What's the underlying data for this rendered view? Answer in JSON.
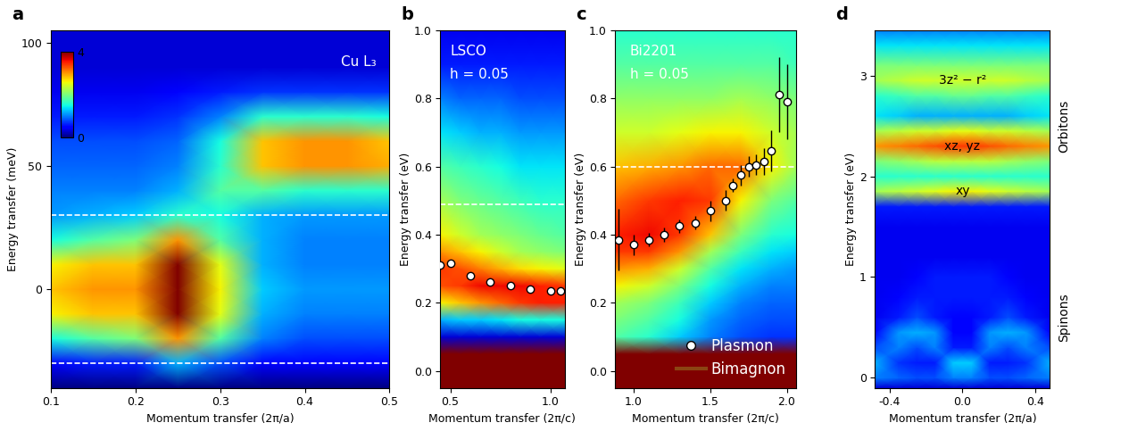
{
  "chart_data": [
    {
      "type": "heatmap",
      "panel": "a",
      "xlabel": "Momentum transfer (2π/a)",
      "ylabel": "Energy transfer (meV)",
      "xlim": [
        0.1,
        0.5
      ],
      "ylim": [
        -40,
        105
      ],
      "xticks": [
        0.1,
        0.2,
        0.3,
        0.4,
        0.5
      ],
      "yticks": [
        0,
        50,
        100
      ],
      "texts": [
        "Cu L₃"
      ],
      "reference_lines": [
        30,
        -30
      ],
      "colorbar": {
        "range": [
          0,
          4
        ],
        "ticks": [
          0,
          4
        ]
      },
      "x": [
        0.1,
        0.15,
        0.2,
        0.25,
        0.3,
        0.35,
        0.4,
        0.45,
        0.5
      ],
      "y": [
        -40,
        -30,
        -20,
        -10,
        0,
        10,
        20,
        30,
        40,
        50,
        60,
        70,
        80,
        90,
        105
      ],
      "cells": [
        [
          0,
          0,
          0,
          0,
          0,
          0,
          0,
          0,
          0
        ],
        [
          0.5,
          0.6,
          0.6,
          1.2,
          0.8,
          0.5,
          0.5,
          0.5,
          0.5
        ],
        [
          1.5,
          1.8,
          2,
          3,
          1.8,
          1,
          0.8,
          0.8,
          0.8
        ],
        [
          2.6,
          2.8,
          2.8,
          4,
          2.5,
          1.2,
          1,
          1,
          1
        ],
        [
          2.8,
          3,
          3,
          4,
          2.6,
          1.3,
          1.1,
          1.1,
          1.1
        ],
        [
          2.6,
          2.8,
          2.8,
          4,
          2.5,
          1.2,
          1,
          1,
          1
        ],
        [
          1.5,
          1.8,
          2,
          3,
          1.8,
          1.2,
          1,
          1,
          1
        ],
        [
          1.1,
          1.2,
          1.3,
          1.6,
          1.5,
          1.2,
          1.1,
          1.1,
          1.1
        ],
        [
          1,
          1,
          1,
          1.2,
          1.8,
          1.8,
          1.6,
          1.6,
          1.6
        ],
        [
          0.9,
          0.9,
          0.9,
          1,
          1.6,
          2.8,
          3,
          3,
          2.9
        ],
        [
          0.8,
          0.8,
          0.8,
          0.9,
          1.5,
          2.8,
          3,
          3,
          2.8
        ],
        [
          0.6,
          0.6,
          0.6,
          0.7,
          1,
          1.6,
          1.6,
          1.6,
          1.5
        ],
        [
          0.4,
          0.4,
          0.4,
          0.5,
          0.6,
          0.7,
          0.7,
          0.7,
          0.7
        ],
        [
          0.3,
          0.3,
          0.3,
          0.3,
          0.3,
          0.3,
          0.3,
          0.3,
          0.3
        ],
        [
          0.3,
          0.3,
          0.3,
          0.3,
          0.3,
          0.3,
          0.3,
          0.3,
          0.3
        ]
      ]
    },
    {
      "type": "heatmap",
      "panel": "b",
      "xlabel": "Momentum transfer (2π/c)",
      "ylabel": "Energy transfer (eV)",
      "xlim": [
        0.45,
        1.07
      ],
      "ylim": [
        -0.05,
        1.0
      ],
      "xticks": [
        0.5,
        1.0
      ],
      "yticks": [
        0.0,
        0.2,
        0.4,
        0.6,
        0.8,
        1.0
      ],
      "texts": [
        "LSCO",
        "h = 0.05"
      ],
      "reference_lines": [
        0.49
      ],
      "color_range": [
        0,
        4
      ],
      "series": [
        {
          "color": "#ffffff",
          "marker": "o",
          "x": [
            0.45,
            0.5,
            0.6,
            0.7,
            0.8,
            0.9,
            1.0,
            1.05
          ],
          "values": [
            0.31,
            0.315,
            0.28,
            0.26,
            0.25,
            0.24,
            0.235,
            0.235
          ]
        }
      ],
      "x": [
        0.45,
        0.55,
        0.65,
        0.75,
        0.85,
        0.95,
        1.07
      ],
      "y": [
        -0.05,
        0.0,
        0.05,
        0.1,
        0.15,
        0.2,
        0.25,
        0.3,
        0.35,
        0.4,
        0.5,
        0.6,
        0.7,
        0.8,
        0.9,
        1.0
      ],
      "cells": [
        [
          4,
          4,
          4,
          4,
          4,
          4,
          4
        ],
        [
          4,
          4,
          4,
          4,
          4,
          4,
          4
        ],
        [
          4,
          4,
          4,
          4,
          4,
          4,
          4
        ],
        [
          0.3,
          0.3,
          0.3,
          0.3,
          0.3,
          0.3,
          0.3
        ],
        [
          1.2,
          1.3,
          1.3,
          1.4,
          1.5,
          1.5,
          1.5
        ],
        [
          2.6,
          2.8,
          3,
          3.2,
          3.4,
          3.5,
          3.5
        ],
        [
          3.3,
          3.4,
          3.6,
          3.6,
          3.6,
          3.5,
          3.4
        ],
        [
          3.4,
          3.3,
          3.1,
          2.9,
          2.7,
          2.6,
          2.5
        ],
        [
          3,
          2.8,
          2.6,
          2.4,
          2.2,
          2.1,
          2
        ],
        [
          2.6,
          2.4,
          2.2,
          2.1,
          2,
          1.9,
          1.8
        ],
        [
          2.2,
          2,
          1.9,
          1.8,
          1.7,
          1.6,
          1.6
        ],
        [
          1.8,
          1.7,
          1.6,
          1.5,
          1.4,
          1.4,
          1.4
        ],
        [
          1.4,
          1.3,
          1.2,
          1.2,
          1.1,
          1.1,
          1.1
        ],
        [
          1.0,
          0.9,
          0.9,
          0.9,
          0.8,
          0.8,
          0.8
        ],
        [
          0.6,
          0.6,
          0.6,
          0.6,
          0.6,
          0.6,
          0.6
        ],
        [
          0.4,
          0.4,
          0.4,
          0.4,
          0.4,
          0.4,
          0.4
        ]
      ]
    },
    {
      "type": "heatmap",
      "panel": "c",
      "xlabel": "Momentum transfer (2π/c)",
      "ylabel": "Energy transfer (eV)",
      "xlim": [
        0.88,
        2.06
      ],
      "ylim": [
        -0.05,
        1.0
      ],
      "xticks": [
        1.0,
        1.5,
        2.0
      ],
      "yticks": [
        0.0,
        0.2,
        0.4,
        0.6,
        0.8,
        1.0
      ],
      "texts": [
        "Bi2201",
        "h = 0.05"
      ],
      "reference_lines": [
        0.6
      ],
      "color_range": [
        0,
        4
      ],
      "legend": "lower right",
      "series": [
        {
          "name": "Plasmon",
          "color": "#ffffff",
          "marker": "o",
          "x": [
            0.9,
            1.0,
            1.1,
            1.2,
            1.3,
            1.4,
            1.5,
            1.6,
            1.65,
            1.7,
            1.75,
            1.8,
            1.85,
            1.9,
            1.95,
            2.0
          ],
          "values": [
            0.385,
            0.37,
            0.385,
            0.4,
            0.425,
            0.435,
            0.47,
            0.5,
            0.545,
            0.575,
            0.6,
            0.605,
            0.615,
            0.645,
            0.81,
            0.79
          ],
          "errors": [
            0.09,
            0.03,
            0.02,
            0.02,
            0.02,
            0.02,
            0.03,
            0.03,
            0.02,
            0.03,
            0.03,
            0.03,
            0.04,
            0.06,
            0.11,
            0.11
          ]
        },
        {
          "name": "Bimagnon",
          "color": "#8b4513",
          "line_style": "solid",
          "x": [],
          "values": []
        }
      ],
      "x": [
        0.88,
        1.1,
        1.3,
        1.5,
        1.7,
        1.9,
        2.06
      ],
      "y": [
        -0.05,
        0.0,
        0.05,
        0.1,
        0.15,
        0.2,
        0.25,
        0.3,
        0.35,
        0.4,
        0.5,
        0.6,
        0.7,
        0.8,
        0.9,
        1.0
      ],
      "cells": [
        [
          4,
          4,
          4,
          4,
          4,
          4,
          4
        ],
        [
          4,
          4,
          4,
          4,
          4,
          4,
          4
        ],
        [
          4,
          4,
          4,
          4,
          4,
          4,
          4
        ],
        [
          1.8,
          1.6,
          1.3,
          1.0,
          0.8,
          0.7,
          0.7
        ],
        [
          2,
          1.8,
          1.5,
          1.1,
          0.9,
          0.8,
          0.8
        ],
        [
          2.2,
          2,
          1.7,
          1.3,
          1.0,
          0.9,
          0.9
        ],
        [
          2.6,
          2.4,
          2.0,
          1.5,
          1.2,
          1.0,
          1.0
        ],
        [
          3,
          2.9,
          2.4,
          1.8,
          1.4,
          1.2,
          1.1
        ],
        [
          3.4,
          3.4,
          3,
          2.2,
          1.7,
          1.4,
          1.3
        ],
        [
          3.5,
          3.6,
          3.4,
          2.8,
          2.0,
          1.6,
          1.5
        ],
        [
          3.2,
          3.4,
          3.5,
          3.4,
          2.6,
          2.0,
          1.8
        ],
        [
          2.8,
          2.9,
          3.0,
          3.2,
          3.2,
          2.6,
          2.2
        ],
        [
          2.4,
          2.4,
          2.5,
          2.6,
          2.6,
          2.4,
          2.2
        ],
        [
          2.1,
          2.1,
          2.1,
          2.1,
          2.2,
          2.1,
          2.0
        ],
        [
          1.8,
          1.8,
          1.8,
          1.8,
          1.8,
          1.8,
          1.7
        ],
        [
          1.6,
          1.6,
          1.6,
          1.6,
          1.6,
          1.6,
          1.6
        ]
      ]
    },
    {
      "type": "heatmap",
      "panel": "d",
      "xlabel": "Momentum transfer (2π/a)",
      "ylabel": "Energy transfer (eV)",
      "xlim": [
        -0.48,
        0.48
      ],
      "ylim": [
        -0.1,
        3.45
      ],
      "xticks": [
        -0.4,
        0.0,
        0.4
      ],
      "yticks": [
        0,
        1,
        2,
        3
      ],
      "color_range": [
        0,
        4
      ],
      "band_labels": [
        {
          "label": "3z² − r²",
          "value": 2.95
        },
        {
          "label": "xz, yz",
          "value": 2.3
        },
        {
          "label": "xy",
          "value": 1.85
        }
      ],
      "side_labels": [
        {
          "label": "Orbitons",
          "value": 2.5
        },
        {
          "label": "Spinons",
          "value": 0.6
        }
      ],
      "x": [
        -0.48,
        -0.35,
        -0.25,
        -0.15,
        -0.05,
        0.05,
        0.15,
        0.25,
        0.35,
        0.48
      ],
      "y": [
        -0.1,
        0.0,
        0.15,
        0.3,
        0.45,
        0.6,
        0.8,
        1.0,
        1.2,
        1.5,
        1.7,
        1.85,
        2.0,
        2.15,
        2.3,
        2.45,
        2.6,
        2.8,
        2.95,
        3.1,
        3.3,
        3.45
      ],
      "cells": [
        [
          0.3,
          0.3,
          0.3,
          0.3,
          0.3,
          0.3,
          0.3,
          0.3,
          0.3,
          0.3
        ],
        [
          1.0,
          0.9,
          0.8,
          0.8,
          1.0,
          1.0,
          0.8,
          0.8,
          0.9,
          1.0
        ],
        [
          1.2,
          0.7,
          0.6,
          0.6,
          1.3,
          1.3,
          0.6,
          0.6,
          0.7,
          1.2
        ],
        [
          0.8,
          1.0,
          0.8,
          1.0,
          0.6,
          0.6,
          1.0,
          0.8,
          1.0,
          0.8
        ],
        [
          0.5,
          1.1,
          1.2,
          1.1,
          0.5,
          0.5,
          1.1,
          1.2,
          1.1,
          0.5
        ],
        [
          0.4,
          0.6,
          0.8,
          0.6,
          0.5,
          0.5,
          0.6,
          0.8,
          0.6,
          0.4
        ],
        [
          0.4,
          0.5,
          0.6,
          0.6,
          0.6,
          0.6,
          0.6,
          0.6,
          0.5,
          0.4
        ],
        [
          0.4,
          0.4,
          0.5,
          0.6,
          0.6,
          0.6,
          0.6,
          0.5,
          0.4,
          0.4
        ],
        [
          0.4,
          0.4,
          0.4,
          0.4,
          0.4,
          0.4,
          0.4,
          0.4,
          0.4,
          0.4
        ],
        [
          0.4,
          0.4,
          0.4,
          0.4,
          0.4,
          0.4,
          0.4,
          0.4,
          0.4,
          0.4
        ],
        [
          0.6,
          0.6,
          0.6,
          0.6,
          0.6,
          0.6,
          0.6,
          0.6,
          0.6,
          0.6
        ],
        [
          2.2,
          2.3,
          2.4,
          2.5,
          2.6,
          2.6,
          2.5,
          2.4,
          2.3,
          2.2
        ],
        [
          1.6,
          1.6,
          1.6,
          1.6,
          1.6,
          1.6,
          1.6,
          1.6,
          1.6,
          1.6
        ],
        [
          2.0,
          2.1,
          2.2,
          2.3,
          2.3,
          2.3,
          2.3,
          2.2,
          2.1,
          2.0
        ],
        [
          3.0,
          3.1,
          3.2,
          3.3,
          3.4,
          3.4,
          3.3,
          3.2,
          3.1,
          3.0
        ],
        [
          2.2,
          2.3,
          2.4,
          2.4,
          2.5,
          2.5,
          2.4,
          2.4,
          2.3,
          2.2
        ],
        [
          1.4,
          1.3,
          1.2,
          1.2,
          1.2,
          1.2,
          1.2,
          1.2,
          1.3,
          1.4
        ],
        [
          1.6,
          1.7,
          1.8,
          1.8,
          1.9,
          1.9,
          1.8,
          1.8,
          1.7,
          1.6
        ],
        [
          2.2,
          2.3,
          2.4,
          2.4,
          2.4,
          2.4,
          2.4,
          2.4,
          2.3,
          2.2
        ],
        [
          2.0,
          2.0,
          2.0,
          2.0,
          2.0,
          2.0,
          2.0,
          2.0,
          2.0,
          2.0
        ],
        [
          1.4,
          1.4,
          1.4,
          1.4,
          1.4,
          1.4,
          1.4,
          1.4,
          1.4,
          1.4
        ],
        [
          1.0,
          1.0,
          1.0,
          1.0,
          1.0,
          1.0,
          1.0,
          1.0,
          1.0,
          1.0
        ]
      ]
    }
  ]
}
